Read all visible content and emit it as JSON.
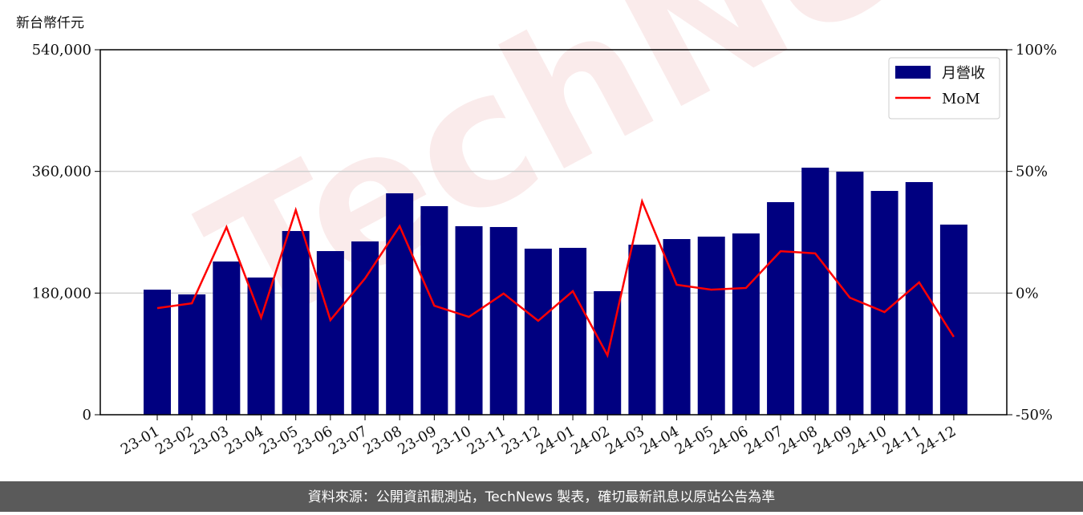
{
  "chart_data": {
    "type": "bar",
    "y_axis_label": "新台幣仟元",
    "watermark": "TechNews",
    "footer": "資料來源：公開資訊觀測站，TechNews 製表，確切最新訊息以原站公告為準",
    "categories": [
      "23-01",
      "23-02",
      "23-03",
      "23-04",
      "23-05",
      "23-06",
      "23-07",
      "23-08",
      "23-09",
      "23-10",
      "23-11",
      "23-12",
      "24-01",
      "24-02",
      "24-03",
      "24-04",
      "24-05",
      "24-06",
      "24-07",
      "24-08",
      "24-09",
      "24-10",
      "24-11",
      "24-12"
    ],
    "series": [
      {
        "name": "月營收",
        "color": "#000080",
        "type": "bar",
        "values": [
          185000,
          178000,
          226700,
          203000,
          271800,
          242100,
          256400,
          327600,
          308600,
          278900,
          277700,
          245700,
          246900,
          182800,
          251600,
          259900,
          263500,
          268200,
          314500,
          365500,
          359600,
          331100,
          344200,
          281300
        ]
      },
      {
        "name": "MoM",
        "color": "#ff0000",
        "type": "line",
        "axis": "y2",
        "values": [
          -6.2,
          -4.2,
          27.1,
          -10.1,
          34.1,
          -11.1,
          6.0,
          27.5,
          -5.2,
          -9.8,
          -0.2,
          -11.4,
          0.8,
          -25.6,
          37.7,
          3.4,
          1.4,
          2.1,
          17.2,
          16.3,
          -1.9,
          -7.8,
          4.4,
          -18.0
        ]
      }
    ],
    "ylim": [
      0,
      540000
    ],
    "yticks": [
      0,
      {
        "value": 180000,
        "label": "180,000"
      },
      {
        "value": 360000,
        "label": "360,000"
      },
      {
        "value": 540000,
        "label": "540,000"
      }
    ],
    "y2lim": [
      -50,
      100
    ],
    "y2ticks": [
      {
        "value": -50,
        "label": "-50%"
      },
      {
        "value": 0,
        "label": "0%"
      },
      {
        "value": 50,
        "label": "50%"
      },
      {
        "value": 100,
        "label": "100%"
      }
    ],
    "grid": true,
    "legend": "upper right"
  }
}
